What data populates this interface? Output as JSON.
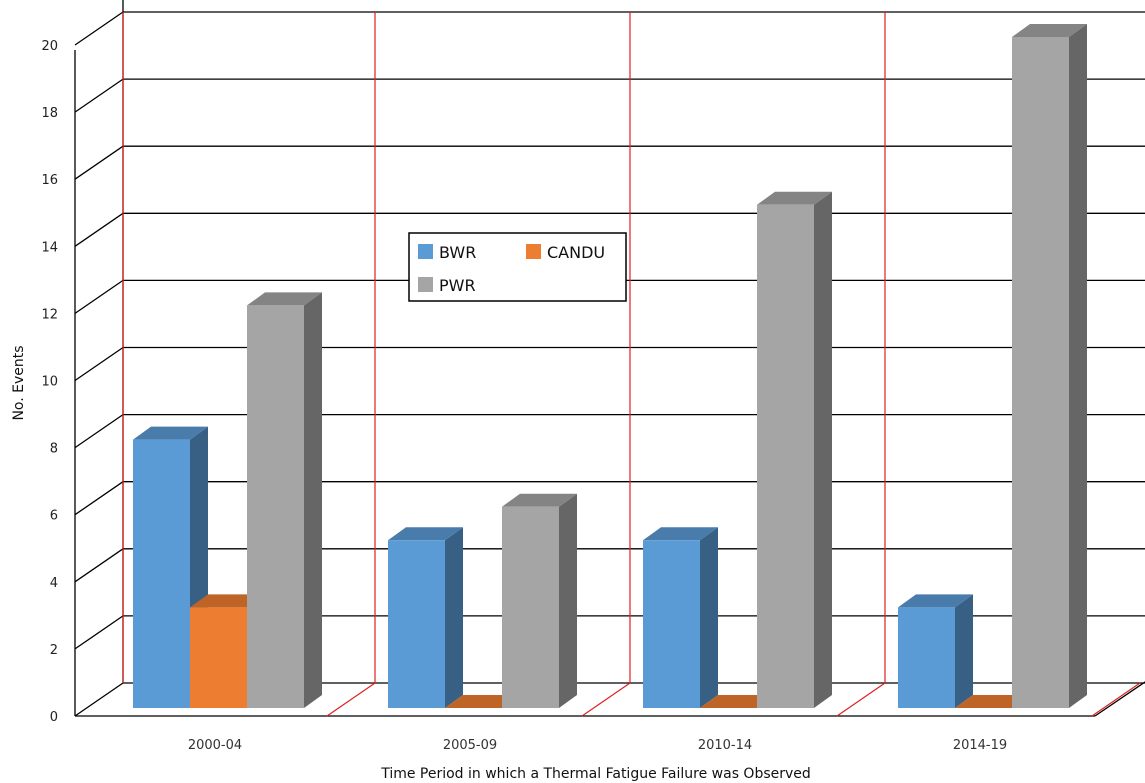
{
  "chart_data": {
    "type": "bar",
    "title": "",
    "xlabel": "Time Period in which a Thermal Fatigue Failure was Observed",
    "ylabel": "No. Events",
    "ylim": [
      0,
      20
    ],
    "yticks": [
      "0",
      "2",
      "4",
      "6",
      "8",
      "10",
      "12",
      "14",
      "16",
      "18",
      "20"
    ],
    "categories": [
      "2000-04",
      "2005-09",
      "2010-14",
      "2014-19"
    ],
    "series": [
      {
        "name": "BWR",
        "values": [
          8,
          5,
          5,
          3
        ],
        "color": "#5b9bd5"
      },
      {
        "name": "CANDU",
        "values": [
          3,
          0,
          0,
          0
        ],
        "color": "#ed7d31"
      },
      {
        "name": "PWR",
        "values": [
          12,
          6,
          15,
          20
        ],
        "color": "#a5a5a5"
      }
    ],
    "grid": true,
    "legend": "center",
    "style": "3d-clustered-column"
  }
}
